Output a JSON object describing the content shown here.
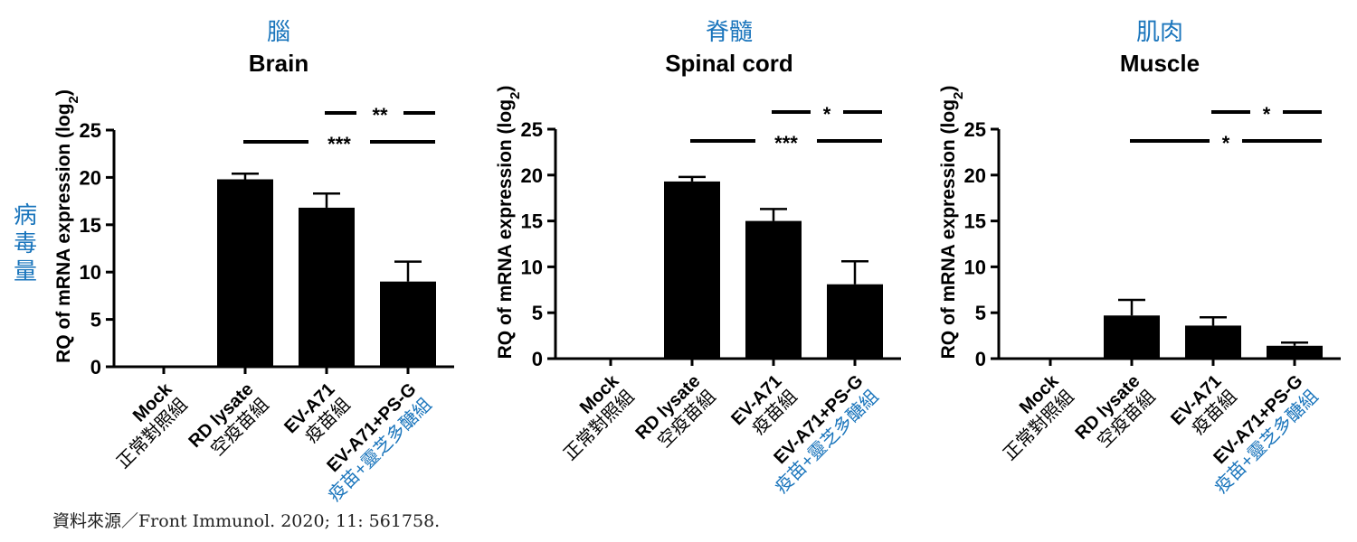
{
  "side_label": [
    "病",
    "毒",
    "量"
  ],
  "source": "資料來源／Front Immunol. 2020; 11: 561758.",
  "colors": {
    "bars": "#000000",
    "chinese": "#1a75bc",
    "text": "#000000"
  },
  "chart_data": [
    {
      "type": "bar",
      "title_zh": "腦",
      "title": "Brain",
      "ylabel": "RQ of mRNA expression (log",
      "ylabel_sub": "2",
      "ylabel_tail": ")",
      "ylim": [
        0,
        25
      ],
      "yticks": [
        "0",
        "5",
        "10",
        "15",
        "20",
        "25"
      ],
      "categories": [
        {
          "en": "Mock",
          "zh": "正常對照組",
          "zh_highlight": false
        },
        {
          "en": "RD lysate",
          "zh": "空疫苗組",
          "zh_highlight": false
        },
        {
          "en": "EV-A71",
          "zh": "疫苗組",
          "zh_highlight": false
        },
        {
          "en": "EV-A71+PS-G",
          "zh": "疫苗+靈芝多醣組",
          "zh_highlight": true
        }
      ],
      "values": [
        0,
        19.8,
        16.8,
        9.0
      ],
      "errors": [
        0,
        0.6,
        1.5,
        2.1
      ],
      "significance": [
        {
          "from": 2,
          "to": 3,
          "label": "**"
        },
        {
          "from": 1,
          "to": 3,
          "label": "***"
        }
      ]
    },
    {
      "type": "bar",
      "title_zh": "脊髓",
      "title": "Spinal cord",
      "ylabel": "RQ of mRNA expression (log",
      "ylabel_sub": "2",
      "ylabel_tail": ")",
      "ylim": [
        0,
        25
      ],
      "yticks": [
        "0",
        "5",
        "10",
        "15",
        "20",
        "25"
      ],
      "categories": [
        {
          "en": "Mock",
          "zh": "正常對照組",
          "zh_highlight": false
        },
        {
          "en": "RD lysate",
          "zh": "空疫苗組",
          "zh_highlight": false
        },
        {
          "en": "EV-A71",
          "zh": "疫苗組",
          "zh_highlight": false
        },
        {
          "en": "EV-A71+PS-G",
          "zh": "疫苗+靈芝多醣組",
          "zh_highlight": true
        }
      ],
      "values": [
        0,
        19.3,
        15.0,
        8.1
      ],
      "errors": [
        0,
        0.5,
        1.3,
        2.5
      ],
      "significance": [
        {
          "from": 2,
          "to": 3,
          "label": "*"
        },
        {
          "from": 1,
          "to": 3,
          "label": "***"
        }
      ]
    },
    {
      "type": "bar",
      "title_zh": "肌肉",
      "title": "Muscle",
      "ylabel": "RQ of mRNA expression (log",
      "ylabel_sub": "2",
      "ylabel_tail": ")",
      "ylim": [
        0,
        25
      ],
      "yticks": [
        "0",
        "5",
        "10",
        "15",
        "20",
        "25"
      ],
      "categories": [
        {
          "en": "Mock",
          "zh": "正常對照組",
          "zh_highlight": false
        },
        {
          "en": "RD lysate",
          "zh": "空疫苗組",
          "zh_highlight": false
        },
        {
          "en": "EV-A71",
          "zh": "疫苗組",
          "zh_highlight": false
        },
        {
          "en": "EV-A71+PS-G",
          "zh": "疫苗+靈芝多醣組",
          "zh_highlight": true
        }
      ],
      "values": [
        0,
        4.7,
        3.6,
        1.4
      ],
      "errors": [
        0,
        1.7,
        0.9,
        0.35
      ],
      "significance": [
        {
          "from": 2,
          "to": 3,
          "label": "*"
        },
        {
          "from": 1,
          "to": 3,
          "label": "*"
        }
      ]
    }
  ]
}
